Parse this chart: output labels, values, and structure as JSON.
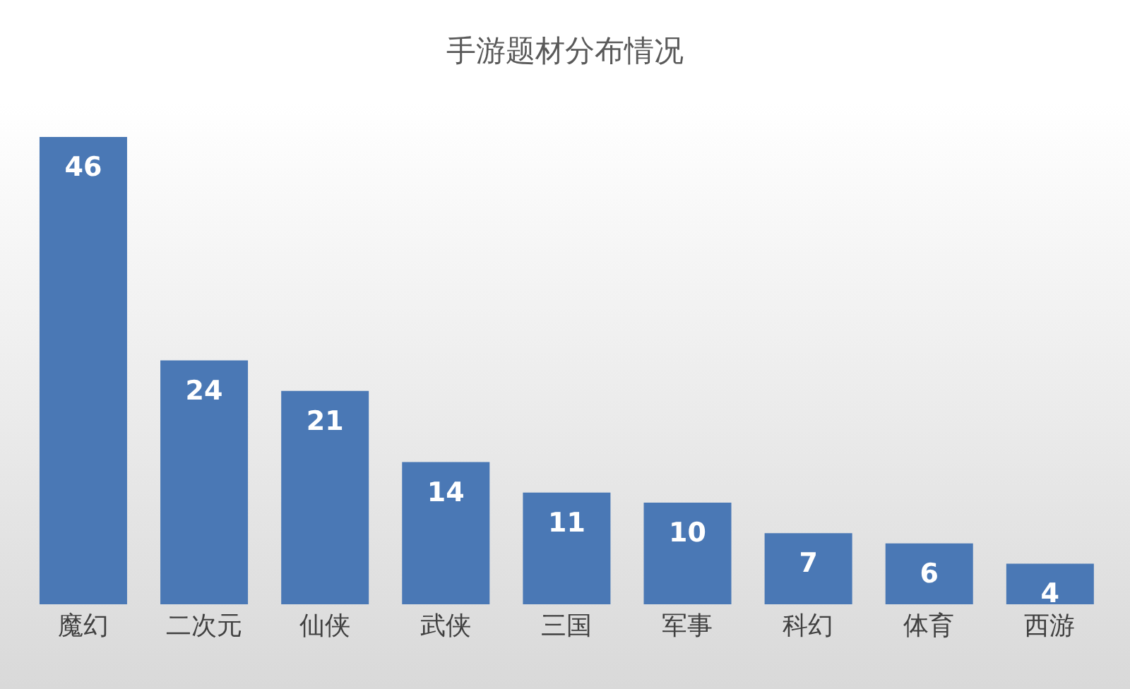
{
  "chart_data": {
    "type": "bar",
    "title": "手游题材分布情况",
    "categories": [
      "魔幻",
      "二次元",
      "仙侠",
      "武侠",
      "三国",
      "军事",
      "科幻",
      "体育",
      "西游"
    ],
    "values": [
      46,
      24,
      21,
      14,
      11,
      10,
      7,
      6,
      4
    ],
    "color": "#4a78b5",
    "data_labels": true
  }
}
